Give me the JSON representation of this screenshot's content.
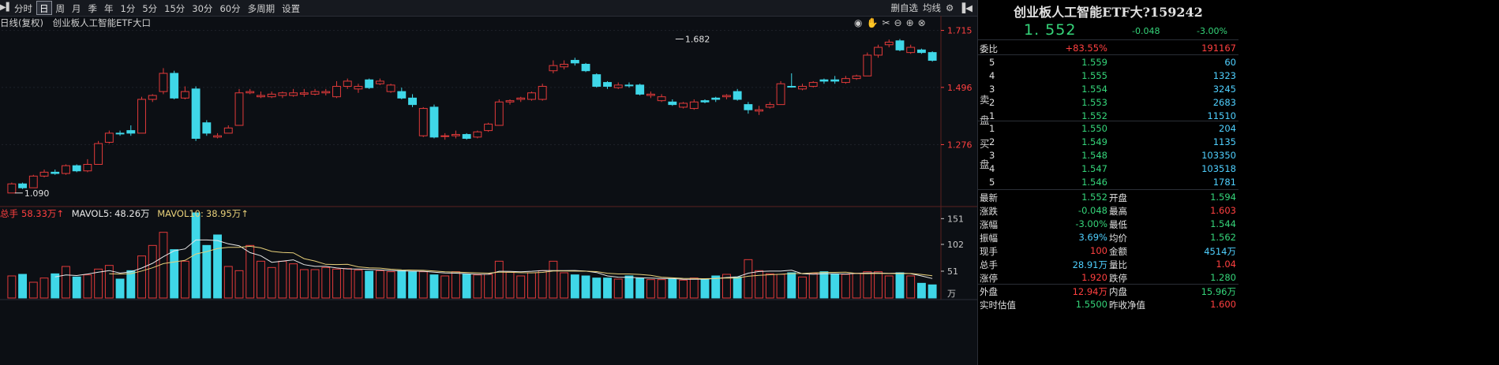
{
  "toolbar": {
    "items": [
      "分时",
      "日",
      "周",
      "月",
      "季",
      "年",
      "1分",
      "5分",
      "15分",
      "30分",
      "60分",
      "多周期",
      "设置"
    ],
    "active_index": 1,
    "right": {
      "delete_watch": "删自选",
      "overlay": "均线"
    }
  },
  "chart_header": {
    "period": "日线(复权)",
    "name": "创业板人工智能ETF大口"
  },
  "colors": {
    "up": "#e23a3a",
    "down": "#3fd7e8",
    "ma5": "#e8e8e8",
    "ma10": "#e8d07a",
    "price_axis": "#ff4040"
  },
  "chart_data": {
    "type": "candlestick",
    "price_ticks": [
      "1.715",
      "1.496",
      "1.276"
    ],
    "price_tick_values": [
      1.715,
      1.496,
      1.276
    ],
    "ylim": [
      1.05,
      1.735
    ],
    "annotations": [
      {
        "label": "1.682",
        "index": 61,
        "value": 1.682
      },
      {
        "label": "1.090",
        "index": 0,
        "value": 1.09
      }
    ],
    "candles": [
      [
        1.09,
        1.125,
        1.13,
        1.09,
        1
      ],
      [
        1.125,
        1.11,
        1.13,
        1.105,
        0
      ],
      [
        1.11,
        1.155,
        1.16,
        1.11,
        1
      ],
      [
        1.155,
        1.17,
        1.18,
        1.15,
        1
      ],
      [
        1.17,
        1.165,
        1.18,
        1.16,
        0
      ],
      [
        1.165,
        1.195,
        1.2,
        1.16,
        1
      ],
      [
        1.195,
        1.175,
        1.2,
        1.17,
        0
      ],
      [
        1.175,
        1.2,
        1.22,
        1.17,
        1
      ],
      [
        1.2,
        1.28,
        1.29,
        1.2,
        1
      ],
      [
        1.285,
        1.32,
        1.33,
        1.28,
        1
      ],
      [
        1.32,
        1.32,
        1.33,
        1.31,
        0
      ],
      [
        1.33,
        1.32,
        1.35,
        1.31,
        0
      ],
      [
        1.32,
        1.45,
        1.46,
        1.32,
        1
      ],
      [
        1.45,
        1.465,
        1.47,
        1.44,
        1
      ],
      [
        1.48,
        1.55,
        1.57,
        1.47,
        1
      ],
      [
        1.55,
        1.455,
        1.56,
        1.45,
        0
      ],
      [
        1.455,
        1.48,
        1.5,
        1.45,
        1
      ],
      [
        1.49,
        1.3,
        1.5,
        1.29,
        0
      ],
      [
        1.36,
        1.32,
        1.37,
        1.31,
        0
      ],
      [
        1.305,
        1.31,
        1.32,
        1.3,
        1
      ],
      [
        1.32,
        1.34,
        1.35,
        1.32,
        1
      ],
      [
        1.35,
        1.475,
        1.49,
        1.35,
        1
      ],
      [
        1.475,
        1.48,
        1.49,
        1.47,
        1
      ],
      [
        1.46,
        1.465,
        1.48,
        1.455,
        1
      ],
      [
        1.46,
        1.47,
        1.48,
        1.455,
        1
      ],
      [
        1.465,
        1.475,
        1.48,
        1.455,
        1
      ],
      [
        1.465,
        1.475,
        1.49,
        1.46,
        1
      ],
      [
        1.47,
        1.475,
        1.49,
        1.46,
        1
      ],
      [
        1.47,
        1.48,
        1.49,
        1.465,
        1
      ],
      [
        1.475,
        1.48,
        1.49,
        1.465,
        1
      ],
      [
        1.46,
        1.5,
        1.52,
        1.455,
        1
      ],
      [
        1.5,
        1.52,
        1.53,
        1.49,
        1
      ],
      [
        1.5,
        1.49,
        1.51,
        1.475,
        1
      ],
      [
        1.525,
        1.495,
        1.53,
        1.49,
        0
      ],
      [
        1.51,
        1.52,
        1.53,
        1.505,
        1
      ],
      [
        1.505,
        1.48,
        1.51,
        1.475,
        1
      ],
      [
        1.48,
        1.455,
        1.495,
        1.45,
        0
      ],
      [
        1.455,
        1.43,
        1.47,
        1.42,
        0
      ],
      [
        1.415,
        1.31,
        1.42,
        1.305,
        1
      ],
      [
        1.42,
        1.305,
        1.43,
        1.3,
        0
      ],
      [
        1.31,
        1.31,
        1.32,
        1.295,
        1
      ],
      [
        1.31,
        1.315,
        1.33,
        1.3,
        1
      ],
      [
        1.315,
        1.3,
        1.32,
        1.295,
        0
      ],
      [
        1.305,
        1.325,
        1.33,
        1.3,
        1
      ],
      [
        1.33,
        1.355,
        1.36,
        1.325,
        1
      ],
      [
        1.35,
        1.44,
        1.45,
        1.35,
        1
      ],
      [
        1.44,
        1.445,
        1.45,
        1.43,
        1
      ],
      [
        1.45,
        1.455,
        1.46,
        1.44,
        1
      ],
      [
        1.45,
        1.475,
        1.48,
        1.445,
        1
      ],
      [
        1.45,
        1.5,
        1.51,
        1.445,
        1
      ],
      [
        1.56,
        1.58,
        1.6,
        1.55,
        1
      ],
      [
        1.575,
        1.585,
        1.6,
        1.565,
        1
      ],
      [
        1.6,
        1.59,
        1.61,
        1.58,
        0
      ],
      [
        1.585,
        1.56,
        1.59,
        1.555,
        0
      ],
      [
        1.545,
        1.5,
        1.55,
        1.495,
        0
      ],
      [
        1.515,
        1.5,
        1.52,
        1.49,
        0
      ],
      [
        1.495,
        1.505,
        1.515,
        1.49,
        1
      ],
      [
        1.505,
        1.505,
        1.515,
        1.495,
        0
      ],
      [
        1.505,
        1.47,
        1.51,
        1.465,
        0
      ],
      [
        1.47,
        1.465,
        1.48,
        1.455,
        1
      ],
      [
        1.445,
        1.46,
        1.47,
        1.44,
        1
      ],
      [
        1.44,
        1.43,
        1.45,
        1.425,
        0
      ],
      [
        1.42,
        1.435,
        1.44,
        1.415,
        1
      ],
      [
        1.415,
        1.44,
        1.45,
        1.41,
        1
      ],
      [
        1.44,
        1.445,
        1.45,
        1.435,
        0
      ],
      [
        1.455,
        1.45,
        1.46,
        1.44,
        0
      ],
      [
        1.46,
        1.465,
        1.47,
        1.45,
        1
      ],
      [
        1.48,
        1.45,
        1.49,
        1.445,
        0
      ],
      [
        1.43,
        1.41,
        1.44,
        1.395,
        0
      ],
      [
        1.41,
        1.405,
        1.425,
        1.39,
        1
      ],
      [
        1.42,
        1.43,
        1.44,
        1.415,
        1
      ],
      [
        1.43,
        1.51,
        1.52,
        1.43,
        1
      ],
      [
        1.5,
        1.5,
        1.55,
        1.495,
        0
      ],
      [
        1.49,
        1.5,
        1.51,
        1.485,
        1
      ],
      [
        1.5,
        1.515,
        1.52,
        1.495,
        1
      ],
      [
        1.52,
        1.525,
        1.53,
        1.51,
        0
      ],
      [
        1.525,
        1.52,
        1.54,
        1.51,
        0
      ],
      [
        1.515,
        1.53,
        1.54,
        1.51,
        1
      ],
      [
        1.53,
        1.54,
        1.545,
        1.525,
        1
      ],
      [
        1.54,
        1.62,
        1.63,
        1.54,
        1
      ],
      [
        1.62,
        1.65,
        1.66,
        1.61,
        1
      ],
      [
        1.66,
        1.67,
        1.68,
        1.65,
        1
      ],
      [
        1.675,
        1.64,
        1.682,
        1.635,
        0
      ],
      [
        1.63,
        1.65,
        1.66,
        1.625,
        1
      ],
      [
        1.64,
        1.63,
        1.645,
        1.625,
        0
      ],
      [
        1.63,
        1.6,
        1.635,
        1.595,
        0
      ]
    ],
    "volume": {
      "ticks": [
        "151",
        "102",
        "51"
      ],
      "tick_values": [
        151,
        102,
        51
      ],
      "unit": "万",
      "ylim": [
        0,
        162
      ],
      "values": [
        [
          42,
          1
        ],
        [
          45,
          0
        ],
        [
          30,
          1
        ],
        [
          38,
          1
        ],
        [
          46,
          0
        ],
        [
          60,
          1
        ],
        [
          40,
          0
        ],
        [
          44,
          1
        ],
        [
          55,
          1
        ],
        [
          62,
          1
        ],
        [
          36,
          0
        ],
        [
          52,
          0
        ],
        [
          80,
          1
        ],
        [
          100,
          1
        ],
        [
          125,
          1
        ],
        [
          92,
          0
        ],
        [
          70,
          1
        ],
        [
          165,
          0
        ],
        [
          100,
          0
        ],
        [
          120,
          0
        ],
        [
          60,
          1
        ],
        [
          52,
          1
        ],
        [
          100,
          1
        ],
        [
          70,
          1
        ],
        [
          58,
          1
        ],
        [
          70,
          1
        ],
        [
          65,
          1
        ],
        [
          54,
          1
        ],
        [
          54,
          1
        ],
        [
          58,
          1
        ],
        [
          55,
          1
        ],
        [
          56,
          1
        ],
        [
          53,
          1
        ],
        [
          51,
          0
        ],
        [
          52,
          1
        ],
        [
          50,
          1
        ],
        [
          52,
          0
        ],
        [
          50,
          0
        ],
        [
          50,
          1
        ],
        [
          44,
          0
        ],
        [
          42,
          1
        ],
        [
          50,
          1
        ],
        [
          45,
          0
        ],
        [
          44,
          1
        ],
        [
          45,
          1
        ],
        [
          70,
          1
        ],
        [
          49,
          1
        ],
        [
          42,
          1
        ],
        [
          48,
          1
        ],
        [
          52,
          1
        ],
        [
          70,
          1
        ],
        [
          48,
          1
        ],
        [
          44,
          0
        ],
        [
          42,
          0
        ],
        [
          38,
          0
        ],
        [
          38,
          0
        ],
        [
          36,
          1
        ],
        [
          42,
          0
        ],
        [
          38,
          0
        ],
        [
          35,
          1
        ],
        [
          35,
          1
        ],
        [
          36,
          0
        ],
        [
          34,
          1
        ],
        [
          38,
          1
        ],
        [
          36,
          0
        ],
        [
          42,
          0
        ],
        [
          45,
          1
        ],
        [
          40,
          0
        ],
        [
          73,
          1
        ],
        [
          52,
          1
        ],
        [
          46,
          1
        ],
        [
          45,
          1
        ],
        [
          48,
          0
        ],
        [
          40,
          1
        ],
        [
          47,
          1
        ],
        [
          50,
          0
        ],
        [
          46,
          0
        ],
        [
          45,
          1
        ],
        [
          47,
          1
        ],
        [
          50,
          1
        ],
        [
          50,
          1
        ],
        [
          42,
          1
        ],
        [
          48,
          0
        ],
        [
          42,
          1
        ],
        [
          28,
          0
        ],
        [
          25,
          0
        ]
      ]
    }
  },
  "volume_header": {
    "total_label": "总手",
    "total_value": "58.33万↑",
    "ma5_label": "MAVOL5:",
    "ma5_value": "48.26万",
    "ma10_label": "MAVOL10:",
    "ma10_value": "38.95万↑"
  },
  "quote": {
    "title": "创业板人工智能ETF大?159242",
    "price": "1. 552",
    "change": "-0.048",
    "change_pct": "-3.00%",
    "weibi_label": "委比",
    "weibi_pct": "+83.55%",
    "weibi_diff": "191167",
    "sell_label": "卖盘",
    "buy_label": "买盘",
    "sell": [
      {
        "level": "5",
        "price": "1.559",
        "vol": "60"
      },
      {
        "level": "4",
        "price": "1.555",
        "vol": "1323"
      },
      {
        "level": "3",
        "price": "1.554",
        "vol": "3245"
      },
      {
        "level": "2",
        "price": "1.553",
        "vol": "2683"
      },
      {
        "level": "1",
        "price": "1.552",
        "vol": "11510"
      }
    ],
    "buy": [
      {
        "level": "1",
        "price": "1.550",
        "vol": "204"
      },
      {
        "level": "2",
        "price": "1.549",
        "vol": "1135"
      },
      {
        "level": "3",
        "price": "1.548",
        "vol": "103350"
      },
      {
        "level": "4",
        "price": "1.547",
        "vol": "103518"
      },
      {
        "level": "5",
        "price": "1.546",
        "vol": "1781"
      }
    ],
    "stats": [
      {
        "l1": "最新",
        "v1": "1.552",
        "c1": "green",
        "l2": "开盘",
        "v2": "1.594",
        "c2": "green"
      },
      {
        "l1": "涨跌",
        "v1": "-0.048",
        "c1": "green",
        "l2": "最高",
        "v2": "1.603",
        "c2": "red"
      },
      {
        "l1": "涨幅",
        "v1": "-3.00%",
        "c1": "green",
        "l2": "最低",
        "v2": "1.544",
        "c2": "green"
      },
      {
        "l1": "振幅",
        "v1": "3.69%",
        "c1": "cyan",
        "l2": "均价",
        "v2": "1.562",
        "c2": "green"
      },
      {
        "l1": "现手",
        "v1": "100",
        "c1": "red",
        "l2": "金额",
        "v2": "4514万",
        "c2": "cyan"
      },
      {
        "l1": "总手",
        "v1": "28.91万",
        "c1": "cyan",
        "l2": "量比",
        "v2": "1.04",
        "c2": "red"
      },
      {
        "l1": "涨停",
        "v1": "1.920",
        "c1": "red",
        "l2": "跌停",
        "v2": "1.280",
        "c2": "green"
      },
      {
        "l1": "外盘",
        "v1": "12.94万",
        "c1": "red",
        "l2": "内盘",
        "v2": "15.96万",
        "c2": "green"
      },
      {
        "l1": "实时估值",
        "v1": "1.5500",
        "c1": "green",
        "l2": "昨收净值",
        "v2": "1.600",
        "c2": "red"
      }
    ]
  }
}
